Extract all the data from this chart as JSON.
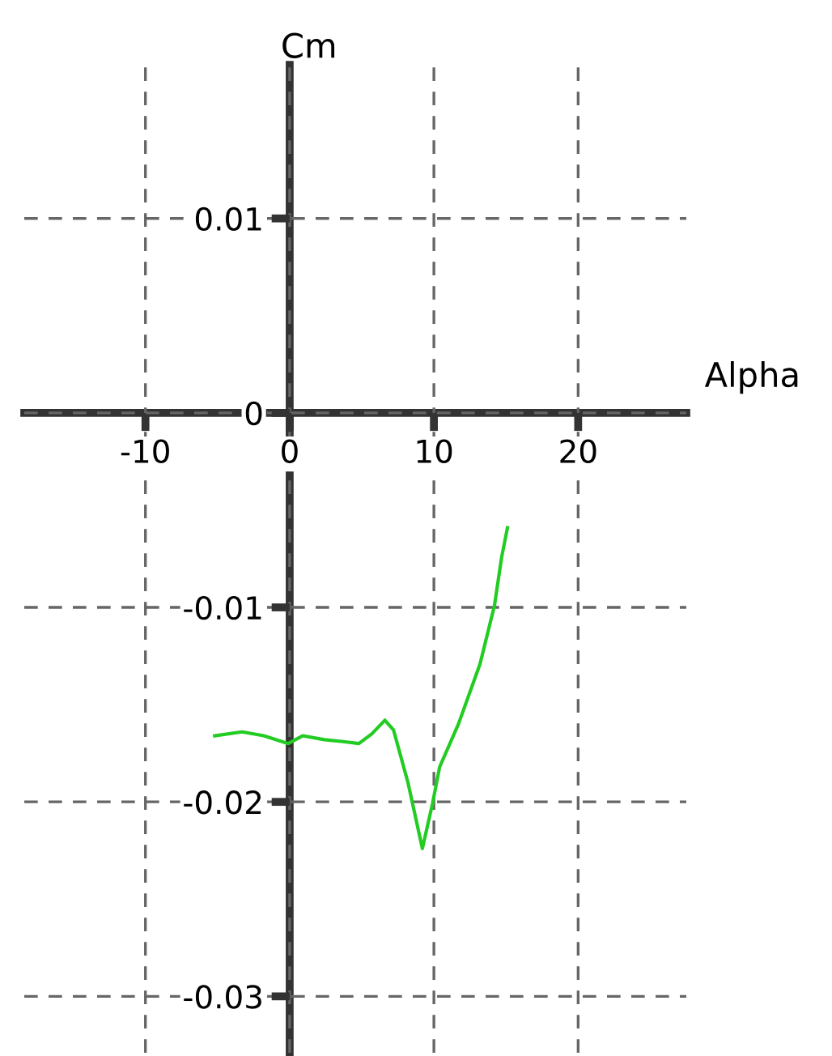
{
  "chart_data": {
    "type": "line",
    "xlabel": "Alpha",
    "ylabel": "Cm",
    "x": [
      -5.2,
      -3.3,
      -1.8,
      -0.1,
      0.9,
      2.4,
      3.7,
      4.8,
      5.7,
      6.6,
      7.2,
      8.2,
      9.2,
      9.9,
      10.4,
      11.7,
      13.2,
      14.2,
      14.7,
      15.1
    ],
    "series": [
      {
        "color": "#22cc22",
        "values": [
          -0.0166,
          -0.0164,
          -0.0166,
          -0.017,
          -0.0166,
          -0.0168,
          -0.0169,
          -0.017,
          -0.0165,
          -0.0158,
          -0.0163,
          -0.019,
          -0.0224,
          -0.0201,
          -0.0182,
          -0.016,
          -0.0129,
          -0.0099,
          -0.0074,
          -0.0059
        ]
      }
    ],
    "xlim": [
      -18.4,
      27.5
    ],
    "ylim": [
      -0.0329,
      0.0179
    ],
    "xticks": [
      -10,
      0,
      10,
      20
    ],
    "yticks": [
      0.01,
      0,
      -0.01,
      -0.02,
      -0.03
    ],
    "grid": true,
    "marker": "none",
    "line_style": "solid"
  }
}
